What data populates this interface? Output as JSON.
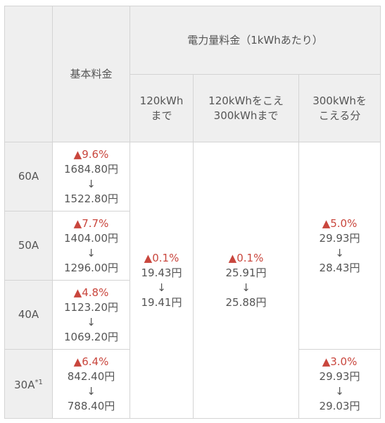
{
  "header": {
    "basic": "基本料金",
    "energy": "電力量料金（1kWhあたり）",
    "tiers": [
      [
        "120kWh",
        "まで"
      ],
      [
        "120kWhをこえ",
        "300kWhまで"
      ],
      [
        "300kWhを",
        "こえる分"
      ]
    ]
  },
  "arrow": "↓",
  "rows": [
    {
      "label": "60A",
      "basic": {
        "change": "▲9.6%",
        "from": "1684.80円",
        "to": "1522.80円"
      }
    },
    {
      "label": "50A",
      "basic": {
        "change": "▲7.7%",
        "from": "1404.00円",
        "to": "1296.00円"
      }
    },
    {
      "label": "40A",
      "basic": {
        "change": "▲4.8%",
        "from": "1123.20円",
        "to": "1069.20円"
      }
    },
    {
      "label": "30A",
      "note": "*1",
      "basic": {
        "change": "▲6.4%",
        "from": "842.40円",
        "to": "788.40円"
      }
    }
  ],
  "energy": {
    "tier1": {
      "change": "▲0.1%",
      "from": "19.43円",
      "to": "19.41円"
    },
    "tier2": {
      "change": "▲0.1%",
      "from": "25.91円",
      "to": "25.88円"
    },
    "tier3": [
      {
        "change": "▲5.0%",
        "from": "29.93円",
        "to": "28.43円"
      },
      {
        "change": "▲3.0%",
        "from": "29.93円",
        "to": "29.03円"
      }
    ]
  }
}
